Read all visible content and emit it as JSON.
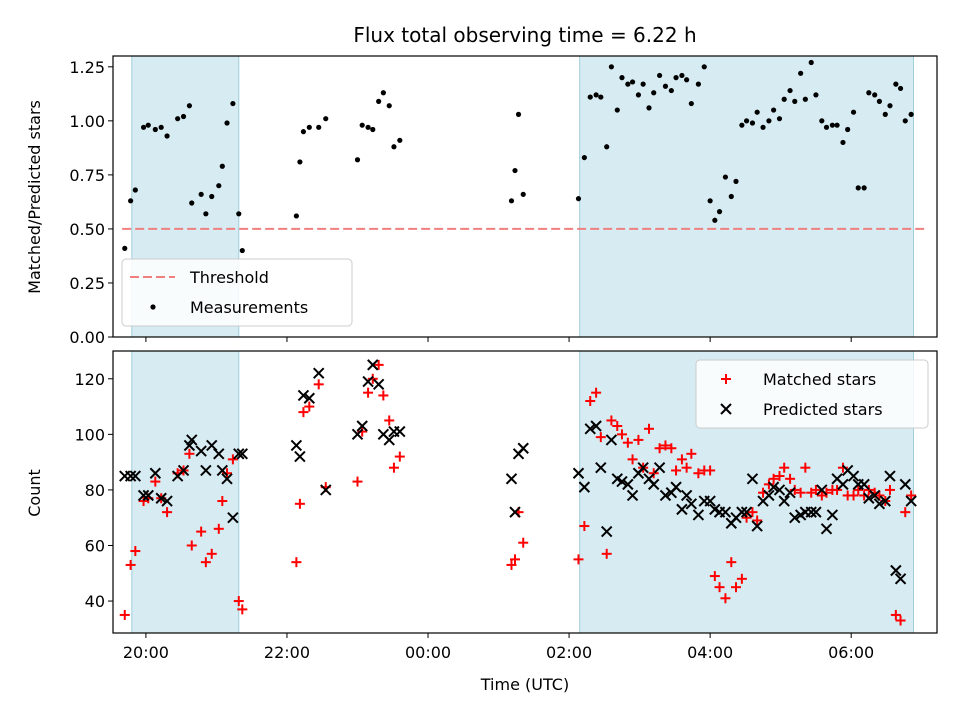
{
  "chart_data": [
    {
      "type": "scatter",
      "title": "Flux total observing time = 6.22 h",
      "ylabel": "Matched/Predicted stars",
      "xlabel": "",
      "ylim": [
        0,
        1.3
      ],
      "xlim": [
        "19:50",
        "07:05"
      ],
      "grid": false,
      "legend_position": "lower-left",
      "y_ticks": [
        "0.00",
        "0.25",
        "0.50",
        "0.75",
        "1.00",
        "1.25"
      ],
      "shaded_intervals": [
        [
          "19:48",
          "21:19"
        ],
        [
          "02:09",
          "06:53"
        ]
      ],
      "threshold": {
        "name": "Threshold",
        "value": 0.5,
        "color": "#f08080"
      },
      "series": [
        {
          "name": "Measurements",
          "color": "#000000",
          "x": [
            "19:42",
            "19:47",
            "19:51",
            "19:58",
            "20:02",
            "20:08",
            "20:13",
            "20:18",
            "20:27",
            "20:32",
            "20:37",
            "20:39",
            "20:47",
            "20:51",
            "20:56",
            "21:02",
            "21:05",
            "21:09",
            "21:14",
            "21:19",
            "21:22",
            "22:08",
            "22:11",
            "22:14",
            "22:19",
            "22:27",
            "22:33",
            "23:00",
            "23:04",
            "23:09",
            "23:13",
            "23:18",
            "23:22",
            "23:27",
            "23:31",
            "23:36",
            "02:08",
            "02:13",
            "02:18",
            "02:23",
            "02:27",
            "02:32",
            "02:36",
            "02:41",
            "02:45",
            "02:50",
            "02:54",
            "02:59",
            "03:03",
            "03:08",
            "03:12",
            "03:17",
            "03:22",
            "03:27",
            "03:31",
            "03:36",
            "03:40",
            "03:44",
            "03:50",
            "03:55",
            "04:00",
            "04:04",
            "04:08",
            "04:13",
            "04:18",
            "04:22",
            "04:27",
            "04:31",
            "04:36",
            "04:40",
            "04:45",
            "04:50",
            "04:54",
            "04:59",
            "05:03",
            "05:08",
            "05:12",
            "05:17",
            "05:21",
            "05:26",
            "05:30",
            "05:35",
            "05:39",
            "05:44",
            "05:48",
            "05:53",
            "05:57",
            "06:02",
            "06:06",
            "06:11",
            "06:15",
            "06:20",
            "06:24",
            "06:29",
            "06:33",
            "06:38",
            "06:42",
            "06:46",
            "06:51",
            "01:11",
            "01:14",
            "01:17",
            "01:21"
          ],
          "y": [
            0.41,
            0.63,
            0.68,
            0.97,
            0.98,
            0.96,
            0.97,
            0.93,
            1.01,
            1.02,
            1.07,
            0.62,
            0.66,
            0.57,
            0.65,
            0.7,
            0.79,
            0.99,
            1.08,
            0.57,
            0.4,
            0.56,
            0.81,
            0.95,
            0.97,
            0.97,
            1.01,
            0.82,
            0.98,
            0.97,
            0.96,
            1.09,
            1.13,
            1.07,
            0.88,
            0.91,
            0.64,
            0.83,
            1.11,
            1.12,
            1.11,
            0.88,
            1.25,
            1.05,
            1.2,
            1.17,
            1.18,
            1.12,
            1.17,
            1.06,
            1.13,
            1.21,
            1.16,
            1.14,
            1.2,
            1.21,
            1.19,
            1.08,
            1.17,
            1.25,
            0.63,
            0.54,
            0.58,
            0.74,
            0.65,
            0.72,
            0.98,
            1.0,
            0.99,
            1.04,
            0.97,
            1.0,
            1.05,
            1.01,
            1.1,
            1.14,
            1.09,
            1.22,
            1.1,
            1.27,
            1.12,
            1.0,
            0.97,
            0.98,
            0.98,
            0.9,
            0.96,
            1.04,
            0.69,
            0.69,
            1.13,
            1.12,
            1.09,
            1.03,
            1.07,
            1.17,
            1.15,
            1.0,
            1.03,
            0.63,
            0.77,
            1.03,
            0.66
          ]
        }
      ]
    },
    {
      "type": "scatter",
      "title": "",
      "ylabel": "Count",
      "xlabel": "Time (UTC)",
      "ylim": [
        28,
        130
      ],
      "xlim": [
        "19:50",
        "07:05"
      ],
      "grid": false,
      "legend_position": "top-right",
      "x_ticks": [
        "20:00",
        "22:00",
        "00:00",
        "02:00",
        "04:00",
        "06:00"
      ],
      "y_ticks": [
        "40",
        "60",
        "80",
        "100",
        "120"
      ],
      "shaded_intervals": [
        [
          "19:48",
          "21:19"
        ],
        [
          "02:09",
          "06:53"
        ]
      ],
      "series": [
        {
          "name": "Matched stars",
          "color": "#ff0000",
          "marker": "+",
          "x": [
            "19:42",
            "19:47",
            "19:51",
            "19:58",
            "20:02",
            "20:08",
            "20:13",
            "20:18",
            "20:27",
            "20:32",
            "20:37",
            "20:39",
            "20:47",
            "20:51",
            "20:56",
            "21:02",
            "21:05",
            "21:09",
            "21:14",
            "21:19",
            "21:22",
            "22:08",
            "22:11",
            "22:14",
            "22:19",
            "22:27",
            "22:33",
            "23:00",
            "23:04",
            "23:09",
            "23:13",
            "23:18",
            "23:22",
            "23:27",
            "23:31",
            "23:36",
            "01:11",
            "01:14",
            "01:17",
            "01:21",
            "02:08",
            "02:13",
            "02:18",
            "02:23",
            "02:27",
            "02:32",
            "02:36",
            "02:41",
            "02:45",
            "02:50",
            "02:54",
            "02:59",
            "03:03",
            "03:08",
            "03:12",
            "03:17",
            "03:22",
            "03:27",
            "03:31",
            "03:36",
            "03:40",
            "03:44",
            "03:50",
            "03:55",
            "04:00",
            "04:04",
            "04:08",
            "04:13",
            "04:18",
            "04:22",
            "04:27",
            "04:31",
            "04:36",
            "04:40",
            "04:45",
            "04:50",
            "04:54",
            "04:59",
            "05:03",
            "05:08",
            "05:12",
            "05:17",
            "05:21",
            "05:26",
            "05:30",
            "05:35",
            "05:39",
            "05:44",
            "05:48",
            "05:53",
            "05:57",
            "06:02",
            "06:06",
            "06:11",
            "06:15",
            "06:20",
            "06:24",
            "06:29",
            "06:33",
            "06:38",
            "06:42",
            "06:46",
            "06:51"
          ],
          "y": [
            35,
            53,
            58,
            76,
            77,
            83,
            77,
            72,
            86,
            87,
            93,
            60,
            65,
            54,
            57,
            66,
            76,
            86,
            91,
            40,
            37,
            54,
            75,
            108,
            110,
            118,
            81,
            83,
            101,
            115,
            120,
            125,
            114,
            105,
            88,
            92,
            53,
            55,
            72,
            61,
            55,
            67,
            112,
            115,
            99,
            57,
            105,
            103,
            100,
            97,
            91,
            98,
            88,
            102,
            86,
            95,
            96,
            95,
            87,
            91,
            88,
            93,
            86,
            87,
            87,
            49,
            45,
            41,
            54,
            45,
            48,
            70,
            72,
            69,
            79,
            82,
            84,
            85,
            88,
            84,
            80,
            79,
            88,
            79,
            80,
            78,
            79,
            80,
            80,
            88,
            78,
            78,
            80,
            78,
            80,
            79,
            78,
            76,
            80,
            35,
            33,
            72,
            78
          ],
          "note_plot_order": "x/y pairs as plotted"
        },
        {
          "name": "Predicted stars",
          "color": "#000000",
          "marker": "x",
          "x": [
            "19:42",
            "19:47",
            "19:51",
            "19:58",
            "20:02",
            "20:08",
            "20:13",
            "20:18",
            "20:27",
            "20:32",
            "20:37",
            "20:39",
            "20:47",
            "20:51",
            "20:56",
            "21:02",
            "21:05",
            "21:09",
            "21:14",
            "21:19",
            "21:22",
            "22:08",
            "22:11",
            "22:14",
            "22:19",
            "22:27",
            "22:33",
            "23:00",
            "23:04",
            "23:09",
            "23:13",
            "23:18",
            "23:22",
            "23:27",
            "23:31",
            "23:36",
            "01:11",
            "01:14",
            "01:17",
            "01:21",
            "02:08",
            "02:13",
            "02:18",
            "02:23",
            "02:27",
            "02:32",
            "02:36",
            "02:41",
            "02:45",
            "02:50",
            "02:54",
            "02:59",
            "03:03",
            "03:08",
            "03:12",
            "03:17",
            "03:22",
            "03:27",
            "03:31",
            "03:36",
            "03:40",
            "03:44",
            "03:50",
            "03:55",
            "04:00",
            "04:04",
            "04:08",
            "04:13",
            "04:18",
            "04:22",
            "04:27",
            "04:31",
            "04:36",
            "04:40",
            "04:45",
            "04:50",
            "04:54",
            "04:59",
            "05:03",
            "05:08",
            "05:12",
            "05:17",
            "05:21",
            "05:26",
            "05:30",
            "05:35",
            "05:39",
            "05:44",
            "05:48",
            "05:53",
            "05:57",
            "06:02",
            "06:06",
            "06:11",
            "06:15",
            "06:20",
            "06:24",
            "06:29",
            "06:33",
            "06:38",
            "06:42",
            "06:46",
            "06:51"
          ],
          "y": [
            85,
            85,
            85,
            78,
            78,
            86,
            77,
            76,
            85,
            87,
            96,
            98,
            94,
            87,
            96,
            93,
            87,
            84,
            70,
            93,
            93,
            96,
            92,
            114,
            113,
            122,
            80,
            100,
            103,
            119,
            125,
            118,
            100,
            98,
            101,
            101,
            84,
            72,
            93,
            95,
            86,
            81,
            102,
            103,
            88,
            65,
            98,
            84,
            83,
            82,
            78,
            86,
            88,
            84,
            82,
            88,
            78,
            79,
            81,
            73,
            78,
            75,
            71,
            76,
            76,
            73,
            72,
            72,
            68,
            70,
            72,
            72,
            84,
            67,
            76,
            78,
            81,
            80,
            76,
            79,
            70,
            71,
            72,
            72,
            72,
            80,
            66,
            71,
            84,
            82,
            87,
            85,
            82,
            82,
            77,
            78,
            75,
            76,
            85,
            51,
            48,
            82,
            76
          ]
        }
      ]
    }
  ]
}
